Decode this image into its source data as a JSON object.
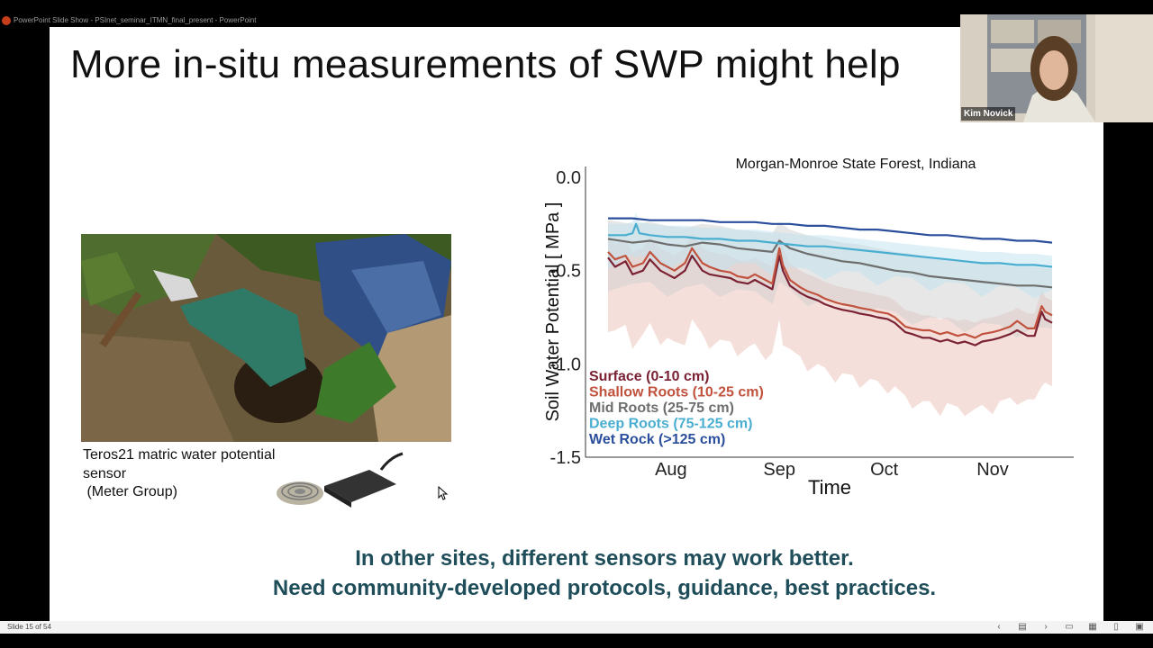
{
  "window": {
    "title": "PowerPoint Slide Show  -  PSInet_seminar_ITMN_final_present  -  PowerPoint",
    "status_slide": "Slide 15 of 54"
  },
  "webcam": {
    "name": "Kim Novick"
  },
  "slide": {
    "title": "More in-situ measurements of SWP might help",
    "sensor_caption": "Teros21 matric water potential\nsensor\n (Meter Group)",
    "bottom_line1": "In other sites, different sensors may work better.",
    "bottom_line2": "Need community-developed protocols, guidance, best practices."
  },
  "chart_data": {
    "type": "line",
    "title": "Morgan-Monroe State Forest, Indiana",
    "xlabel": "Time",
    "ylabel": "Soil Water Potential [ MPa ]",
    "ylim": [
      -1.5,
      0.0
    ],
    "yticks": [
      "0.0",
      "-0.5",
      "-1.0",
      "-1.5"
    ],
    "ytick_values": [
      0.0,
      -0.5,
      -1.0,
      -1.5
    ],
    "xticks": [
      "Aug",
      "Sep",
      "Oct",
      "Nov"
    ],
    "xtick_days": [
      31,
      62,
      92,
      123
    ],
    "xlim": [
      13,
      140
    ],
    "legend_position": "bottom-left",
    "series": [
      {
        "name": "Surface (0-10 cm)",
        "color": "#7a2233",
        "x": [
          13,
          15,
          18,
          20,
          23,
          25,
          28,
          30,
          32,
          35,
          37,
          40,
          42,
          45,
          48,
          50,
          53,
          55,
          58,
          60,
          62,
          63,
          65,
          68,
          70,
          73,
          75,
          78,
          80,
          83,
          85,
          88,
          90,
          93,
          95,
          98,
          100,
          103,
          105,
          108,
          110,
          113,
          115,
          118,
          120,
          123,
          125,
          128,
          130,
          133,
          135,
          137,
          138,
          140
        ],
        "y": [
          -0.43,
          -0.48,
          -0.45,
          -0.52,
          -0.5,
          -0.44,
          -0.5,
          -0.52,
          -0.54,
          -0.5,
          -0.42,
          -0.5,
          -0.52,
          -0.53,
          -0.54,
          -0.56,
          -0.57,
          -0.55,
          -0.58,
          -0.6,
          -0.42,
          -0.5,
          -0.58,
          -0.62,
          -0.64,
          -0.66,
          -0.68,
          -0.7,
          -0.71,
          -0.72,
          -0.73,
          -0.74,
          -0.75,
          -0.76,
          -0.78,
          -0.83,
          -0.84,
          -0.86,
          -0.86,
          -0.88,
          -0.87,
          -0.89,
          -0.88,
          -0.9,
          -0.88,
          -0.87,
          -0.86,
          -0.84,
          -0.82,
          -0.85,
          -0.85,
          -0.72,
          -0.76,
          -0.78
        ]
      },
      {
        "name": "Shallow Roots (10-25 cm)",
        "color": "#c0523e",
        "x": [
          13,
          15,
          18,
          20,
          23,
          25,
          28,
          30,
          32,
          35,
          37,
          40,
          42,
          45,
          48,
          50,
          53,
          55,
          58,
          60,
          62,
          63,
          65,
          68,
          70,
          73,
          75,
          78,
          80,
          83,
          85,
          88,
          90,
          93,
          95,
          98,
          100,
          103,
          105,
          108,
          110,
          113,
          115,
          118,
          120,
          123,
          125,
          128,
          130,
          133,
          135,
          137,
          138,
          140
        ],
        "y": [
          -0.4,
          -0.44,
          -0.42,
          -0.48,
          -0.46,
          -0.4,
          -0.46,
          -0.48,
          -0.5,
          -0.46,
          -0.38,
          -0.46,
          -0.48,
          -0.5,
          -0.51,
          -0.53,
          -0.54,
          -0.52,
          -0.55,
          -0.57,
          -0.38,
          -0.47,
          -0.55,
          -0.59,
          -0.61,
          -0.63,
          -0.65,
          -0.67,
          -0.68,
          -0.69,
          -0.7,
          -0.71,
          -0.72,
          -0.73,
          -0.75,
          -0.8,
          -0.81,
          -0.82,
          -0.82,
          -0.84,
          -0.83,
          -0.85,
          -0.84,
          -0.86,
          -0.84,
          -0.83,
          -0.82,
          -0.8,
          -0.77,
          -0.81,
          -0.81,
          -0.69,
          -0.72,
          -0.74
        ]
      },
      {
        "name": "Mid Roots (25-75 cm)",
        "color": "#6e6e6e",
        "x": [
          13,
          20,
          25,
          30,
          35,
          40,
          45,
          50,
          55,
          60,
          62,
          65,
          70,
          75,
          80,
          85,
          90,
          95,
          100,
          105,
          110,
          115,
          120,
          125,
          130,
          135,
          140
        ],
        "y": [
          -0.33,
          -0.35,
          -0.34,
          -0.36,
          -0.37,
          -0.35,
          -0.36,
          -0.38,
          -0.39,
          -0.4,
          -0.34,
          -0.38,
          -0.41,
          -0.43,
          -0.45,
          -0.46,
          -0.48,
          -0.5,
          -0.51,
          -0.53,
          -0.54,
          -0.55,
          -0.56,
          -0.57,
          -0.58,
          -0.58,
          -0.59
        ]
      },
      {
        "name": "Deep Roots (75-125 cm)",
        "color": "#4aaed0",
        "x": [
          13,
          18,
          20,
          21,
          22,
          25,
          30,
          35,
          40,
          45,
          50,
          55,
          60,
          65,
          70,
          75,
          80,
          85,
          90,
          95,
          100,
          105,
          110,
          115,
          120,
          125,
          130,
          135,
          140
        ],
        "y": [
          -0.31,
          -0.31,
          -0.3,
          -0.25,
          -0.3,
          -0.31,
          -0.32,
          -0.32,
          -0.33,
          -0.33,
          -0.34,
          -0.34,
          -0.35,
          -0.36,
          -0.37,
          -0.37,
          -0.38,
          -0.39,
          -0.4,
          -0.41,
          -0.42,
          -0.43,
          -0.44,
          -0.45,
          -0.46,
          -0.46,
          -0.47,
          -0.47,
          -0.48
        ]
      },
      {
        "name": "Wet Rock (>125 cm)",
        "color": "#2b4f9c",
        "x": [
          13,
          20,
          25,
          30,
          35,
          40,
          45,
          50,
          55,
          60,
          65,
          70,
          75,
          80,
          85,
          90,
          95,
          100,
          105,
          110,
          115,
          120,
          125,
          130,
          135,
          140
        ],
        "y": [
          -0.22,
          -0.22,
          -0.23,
          -0.23,
          -0.23,
          -0.23,
          -0.24,
          -0.24,
          -0.24,
          -0.25,
          -0.25,
          -0.26,
          -0.26,
          -0.27,
          -0.28,
          -0.28,
          -0.29,
          -0.3,
          -0.31,
          -0.31,
          -0.32,
          -0.33,
          -0.33,
          -0.34,
          -0.34,
          -0.35
        ]
      }
    ]
  }
}
